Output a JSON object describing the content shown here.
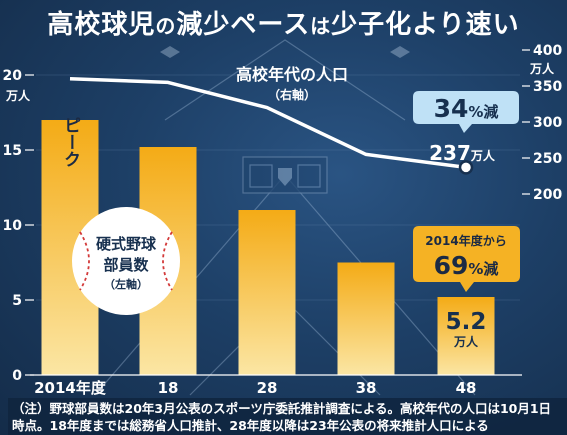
{
  "title": {
    "part1": "高校球児",
    "part2": "の",
    "part3": "減少ペース",
    "part4": "は",
    "part5": "少子化より速い"
  },
  "chart_data": {
    "type": "bar+line",
    "categories": [
      "2014年度",
      "18",
      "28",
      "38",
      "48"
    ],
    "bar_series": {
      "name_lines": [
        "硬式野球",
        "部員数",
        "（左軸）"
      ],
      "values": [
        17.0,
        15.2,
        11.0,
        7.5,
        5.2
      ],
      "color": "#f5b224"
    },
    "line_series": {
      "name": "高校年代の人口",
      "axis_note": "（右軸）",
      "values": [
        360,
        355,
        320,
        255,
        237
      ],
      "color": "#ffffff"
    },
    "left_axis": {
      "ticks": [
        0,
        5,
        10,
        15,
        20
      ],
      "unit": "万人",
      "range": [
        0,
        20
      ]
    },
    "right_axis": {
      "ticks": [
        200,
        250,
        300,
        350,
        400
      ],
      "unit": "万人",
      "range": [
        150,
        400
      ]
    },
    "annotations": {
      "peak": "ピーク",
      "line_decrease_pct": "34",
      "line_decrease_suffix": "%減",
      "line_end_value": "237",
      "line_end_unit": "万人",
      "bar_decrease_prefix": "2014年度から",
      "bar_decrease_pct": "69",
      "bar_decrease_suffix": "%減",
      "bar_end_value": "5.2",
      "bar_end_unit": "万人"
    }
  },
  "footnote": {
    "line1": "（注）野球部員数は20年3月公表のスポーツ庁委託推計調査による。高校年代の人口は10月1日",
    "line2": "時点。18年度までは総務省人口推計、28年度以降は23年公表の将来推計人口による"
  }
}
